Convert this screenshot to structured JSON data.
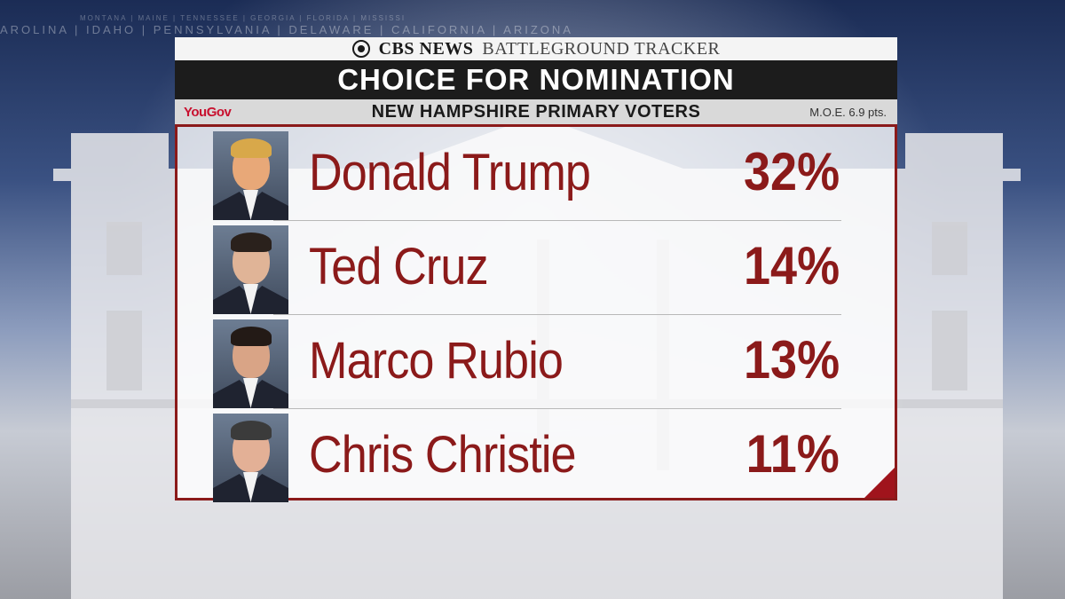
{
  "background": {
    "states_line": "AROLINA | IDAHO | PENNSYLVANIA | DELAWARE | CALIFORNIA | ARIZONA",
    "states_line_small": "MONTANA | MAINE | TENNESSEE | GEORGIA | FLORIDA | MISSISSI"
  },
  "header": {
    "brand": "CBS NEWS",
    "program": "BATTLEGROUND TRACKER",
    "title": "CHOICE FOR NOMINATION",
    "pollster": "YouGov",
    "subtitle": "NEW HAMPSHIRE PRIMARY VOTERS",
    "moe": "M.O.E. 6.9 pts."
  },
  "colors": {
    "accent": "#8b1a1a",
    "title_bar": "#1c1c1c",
    "pollster": "#c8102e"
  },
  "chart_data": {
    "type": "table",
    "title": "CHOICE FOR NOMINATION",
    "subtitle": "NEW HAMPSHIRE PRIMARY VOTERS",
    "categories": [
      "Donald Trump",
      "Ted Cruz",
      "Marco Rubio",
      "Chris Christie"
    ],
    "values": [
      32,
      14,
      13,
      11
    ],
    "value_labels": [
      "32%",
      "14%",
      "13%",
      "11%"
    ],
    "unit": "%"
  }
}
